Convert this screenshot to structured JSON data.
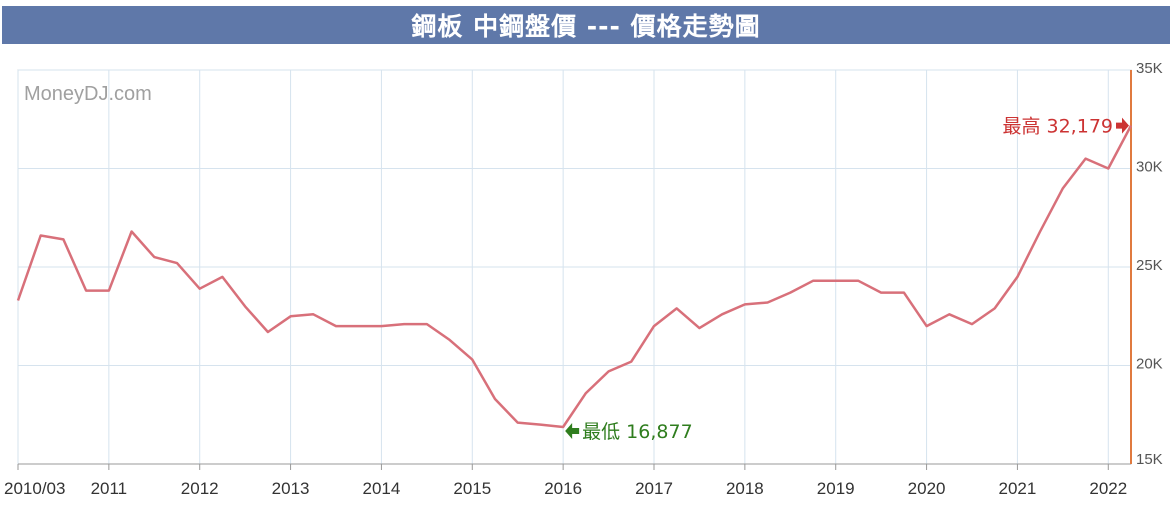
{
  "header": {
    "title": "鋼板 中鋼盤價 --- 價格走勢圖"
  },
  "watermark": "MoneyDJ.com",
  "colors": {
    "title_bg": "#5f78a9",
    "line": "#d8707a",
    "grid": "#d6e3ee",
    "right_axis": "#e07a3f",
    "max_label": "#cc3333",
    "min_label": "#2f7d1e"
  },
  "chart_data": {
    "type": "line",
    "title": "鋼板 中鋼盤價 --- 價格走勢圖",
    "xlabel": "",
    "ylabel": "",
    "ylim": [
      15000,
      35000
    ],
    "y_ticks": [
      15000,
      20000,
      25000,
      30000,
      35000
    ],
    "y_tick_labels": [
      "15K",
      "20K",
      "25K",
      "30K",
      "35K"
    ],
    "y_axis_side": "right",
    "grid": true,
    "x_tick_labels": [
      "2010/03",
      "2011",
      "2012",
      "2013",
      "2014",
      "2015",
      "2016",
      "2017",
      "2018",
      "2019",
      "2020",
      "2021",
      "2022"
    ],
    "x_tick_positions": [
      2010.0,
      2011.0,
      2012.0,
      2013.0,
      2014.0,
      2015.0,
      2016.0,
      2017.0,
      2018.0,
      2019.0,
      2020.0,
      2021.0,
      2022.0
    ],
    "xlim": [
      2010.0,
      2022.25
    ],
    "series": [
      {
        "x": [
          2010.0,
          2010.25,
          2010.5,
          2010.75,
          2011.0,
          2011.25,
          2011.5,
          2011.75,
          2012.0,
          2012.25,
          2012.5,
          2012.75,
          2013.0,
          2013.25,
          2013.5,
          2013.75,
          2014.0,
          2014.25,
          2014.5,
          2014.75,
          2015.0,
          2015.25,
          2015.5,
          2015.75,
          2016.0,
          2016.25,
          2016.5,
          2016.75,
          2017.0,
          2017.25,
          2017.5,
          2017.75,
          2018.0,
          2018.25,
          2018.5,
          2018.75,
          2019.0,
          2019.25,
          2019.5,
          2019.75,
          2020.0,
          2020.25,
          2020.5,
          2020.75,
          2021.0,
          2021.25,
          2021.5,
          2021.75,
          2022.0,
          2022.25
        ],
        "values": [
          23300,
          26600,
          26400,
          23800,
          23800,
          26800,
          25500,
          25200,
          23900,
          24500,
          23000,
          21700,
          22500,
          22600,
          22000,
          22000,
          22000,
          22100,
          22100,
          21300,
          20300,
          18300,
          17100,
          17000,
          16877,
          18600,
          19700,
          20200,
          22000,
          22900,
          21900,
          22600,
          23100,
          23200,
          23700,
          24300,
          24300,
          24300,
          23700,
          23700,
          22000,
          22600,
          22100,
          22900,
          24500,
          26800,
          29000,
          30500,
          30000,
          32179
        ]
      }
    ],
    "annotations": {
      "max": {
        "label": "最高 32,179",
        "value": 32179
      },
      "min": {
        "label": "最低 16,877",
        "value": 16877
      }
    }
  }
}
